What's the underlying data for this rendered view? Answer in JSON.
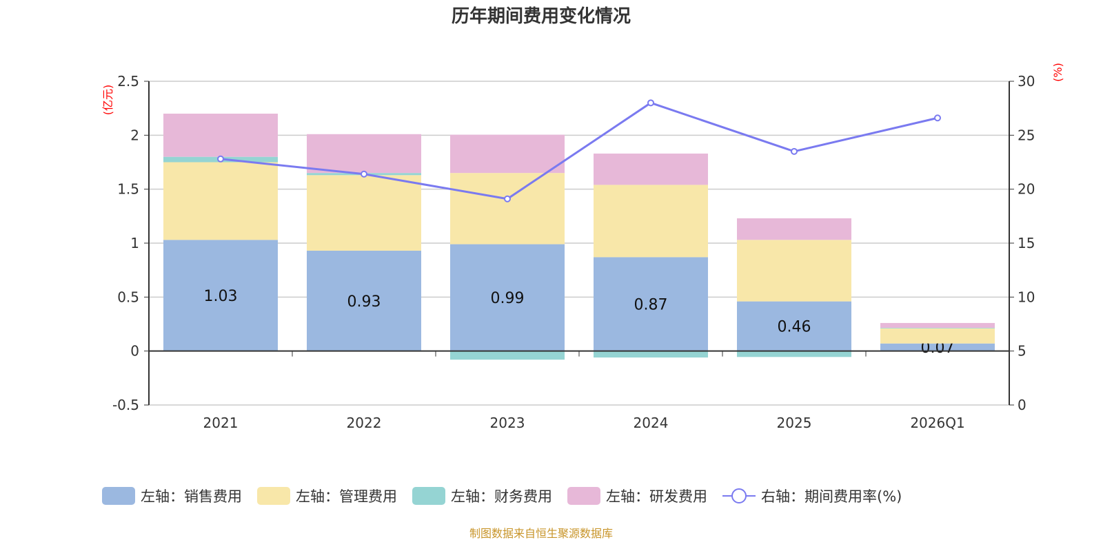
{
  "chart_data": {
    "type": "bar",
    "title": "历年期间费用变化情况",
    "ylabel_left": "(亿元)",
    "ylabel_right": "(%)",
    "ylim_left": [
      -0.5,
      2.5
    ],
    "ylim_right": [
      0,
      30
    ],
    "yticks_left": [
      "-0.5",
      "0",
      "0.5",
      "1",
      "1.5",
      "2",
      "2.5"
    ],
    "yticks_right": [
      "0",
      "5",
      "10",
      "15",
      "20",
      "25",
      "30"
    ],
    "categories": [
      "2021",
      "2022",
      "2023",
      "2024",
      "2025",
      "2026Q1"
    ],
    "series": [
      {
        "name": "左轴：销售费用",
        "axis": "left",
        "type": "bar",
        "color": "#9bb8e0",
        "values": [
          1.03,
          0.93,
          0.99,
          0.87,
          0.46,
          0.07
        ],
        "labels": [
          "1.03",
          "0.93",
          "0.99",
          "0.87",
          "0.46",
          "0.07"
        ]
      },
      {
        "name": "左轴：管理费用",
        "axis": "left",
        "type": "bar",
        "color": "#f8e7a9",
        "values": [
          0.72,
          0.7,
          0.66,
          0.67,
          0.57,
          0.14
        ]
      },
      {
        "name": "左轴：财务费用",
        "axis": "left",
        "type": "bar",
        "color": "#95d4d3",
        "values": [
          0.05,
          0.02,
          -0.08,
          -0.06,
          -0.055,
          0.005
        ]
      },
      {
        "name": "左轴：研发费用",
        "axis": "left",
        "type": "bar",
        "color": "#e7b8d8",
        "values": [
          0.4,
          0.36,
          0.355,
          0.29,
          0.2,
          0.045
        ]
      },
      {
        "name": "右轴：期间费用率(%)",
        "axis": "right",
        "type": "line",
        "color": "#7a7af0",
        "values": [
          22.8,
          21.4,
          19.1,
          28.0,
          23.5,
          26.6
        ]
      }
    ],
    "legend_position": "bottom",
    "grid": true
  },
  "footer": {
    "source": "制图数据来自恒生聚源数据库"
  }
}
